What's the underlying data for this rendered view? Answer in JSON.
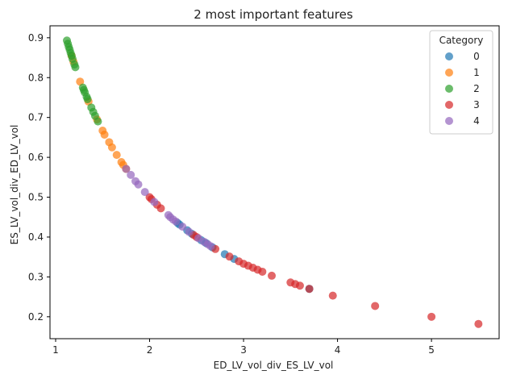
{
  "chart_data": {
    "type": "scatter",
    "title": "2 most important features",
    "xlabel": "ED_LV_vol_div_ES_LV_vol",
    "ylabel": "ES_LV_vol_div_ED_LV_vol",
    "xlim": [
      0.94,
      5.72
    ],
    "ylim": [
      0.145,
      0.93
    ],
    "xticks": [
      1,
      2,
      3,
      4,
      5
    ],
    "yticks": [
      0.2,
      0.3,
      0.4,
      0.5,
      0.6,
      0.7,
      0.8,
      0.9
    ],
    "grid": false,
    "legend": {
      "title": "Category",
      "placement": "top-right"
    },
    "colors": {
      "0": "#1f77b4",
      "1": "#ff7f0e",
      "2": "#2ca02c",
      "3": "#d62728",
      "4": "#9467bd"
    },
    "series": [
      {
        "name": "0",
        "points": [
          [
            2.3,
            0.435
          ],
          [
            2.32,
            0.431
          ],
          [
            2.4,
            0.417
          ],
          [
            2.45,
            0.408
          ],
          [
            2.55,
            0.392
          ],
          [
            2.6,
            0.385
          ],
          [
            2.67,
            0.374
          ],
          [
            2.8,
            0.357
          ],
          [
            2.9,
            0.345
          ],
          [
            3.7,
            0.27
          ]
        ]
      },
      {
        "name": "1",
        "points": [
          [
            1.17,
            0.855
          ],
          [
            1.19,
            0.84
          ],
          [
            1.26,
            0.79
          ],
          [
            1.35,
            0.74
          ],
          [
            1.44,
            0.695
          ],
          [
            1.5,
            0.667
          ],
          [
            1.52,
            0.657
          ],
          [
            1.57,
            0.638
          ],
          [
            1.6,
            0.625
          ],
          [
            1.65,
            0.606
          ],
          [
            1.7,
            0.588
          ],
          [
            1.72,
            0.581
          ],
          [
            1.75,
            0.571
          ]
        ]
      },
      {
        "name": "2",
        "points": [
          [
            1.12,
            0.893
          ],
          [
            1.13,
            0.885
          ],
          [
            1.14,
            0.877
          ],
          [
            1.15,
            0.87
          ],
          [
            1.16,
            0.862
          ],
          [
            1.17,
            0.855
          ],
          [
            1.18,
            0.847
          ],
          [
            1.2,
            0.833
          ],
          [
            1.21,
            0.826
          ],
          [
            1.29,
            0.775
          ],
          [
            1.3,
            0.769
          ],
          [
            1.31,
            0.763
          ],
          [
            1.33,
            0.752
          ],
          [
            1.34,
            0.746
          ],
          [
            1.38,
            0.725
          ],
          [
            1.4,
            0.714
          ],
          [
            1.42,
            0.704
          ],
          [
            1.45,
            0.69
          ]
        ]
      },
      {
        "name": "3",
        "points": [
          [
            2.0,
            0.5
          ],
          [
            2.02,
            0.495
          ],
          [
            2.08,
            0.481
          ],
          [
            2.12,
            0.472
          ],
          [
            2.47,
            0.405
          ],
          [
            2.5,
            0.4
          ],
          [
            2.7,
            0.37
          ],
          [
            2.85,
            0.351
          ],
          [
            2.95,
            0.339
          ],
          [
            3.0,
            0.333
          ],
          [
            3.05,
            0.328
          ],
          [
            3.1,
            0.323
          ],
          [
            3.15,
            0.318
          ],
          [
            3.2,
            0.313
          ],
          [
            3.3,
            0.303
          ],
          [
            3.5,
            0.286
          ],
          [
            3.55,
            0.282
          ],
          [
            3.6,
            0.278
          ],
          [
            3.7,
            0.27
          ],
          [
            3.95,
            0.253
          ],
          [
            4.4,
            0.227
          ],
          [
            5.0,
            0.2
          ],
          [
            5.5,
            0.182
          ]
        ]
      },
      {
        "name": "4",
        "points": [
          [
            1.75,
            0.571
          ],
          [
            1.8,
            0.556
          ],
          [
            1.85,
            0.54
          ],
          [
            1.88,
            0.532
          ],
          [
            1.95,
            0.513
          ],
          [
            2.05,
            0.488
          ],
          [
            2.2,
            0.455
          ],
          [
            2.22,
            0.45
          ],
          [
            2.25,
            0.444
          ],
          [
            2.28,
            0.439
          ],
          [
            2.35,
            0.426
          ],
          [
            2.42,
            0.413
          ],
          [
            2.52,
            0.397
          ],
          [
            2.58,
            0.388
          ],
          [
            2.62,
            0.382
          ],
          [
            2.65,
            0.377
          ]
        ]
      }
    ]
  }
}
